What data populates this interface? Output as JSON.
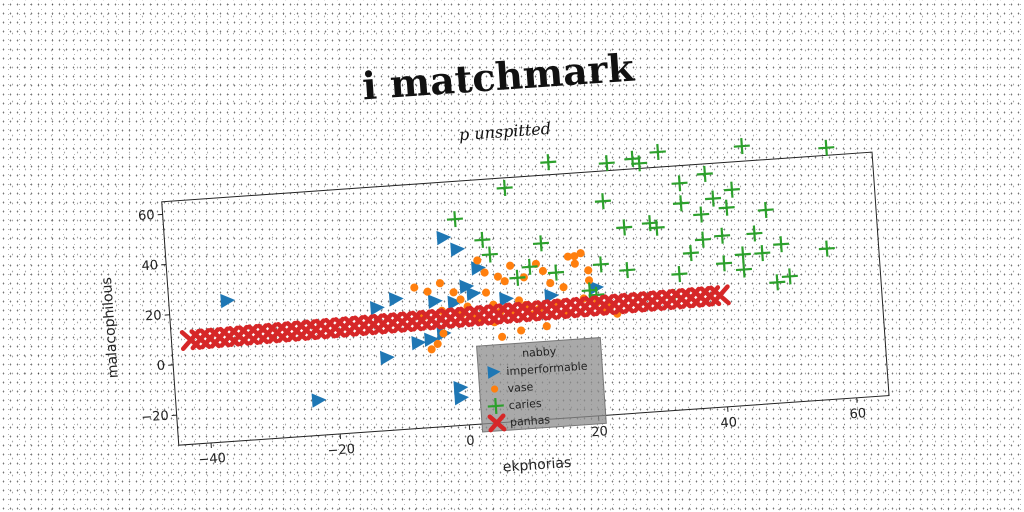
{
  "chart_data": {
    "type": "scatter",
    "title": "i matchmark",
    "subtitle": "p unspitted",
    "xlabel": "ekphorias",
    "ylabel": "malacophilous",
    "xlim": [
      -45,
      65
    ],
    "ylim": [
      -32,
      65
    ],
    "xticks": [
      -40,
      -20,
      0,
      20,
      40,
      60
    ],
    "yticks": [
      -20,
      0,
      20,
      40,
      60
    ],
    "legend_title": "nabby",
    "legend_position": "lower-center",
    "series": [
      {
        "name": "imperformable",
        "marker": "triangle-right",
        "color": "#1f77b4",
        "points": [
          [
            -36,
            24
          ],
          [
            -23,
            -18
          ],
          [
            -13,
            17
          ],
          [
            -12,
            -3
          ],
          [
            -10,
            20
          ],
          [
            -4,
            18
          ],
          [
            -2,
            43
          ],
          [
            0,
            38
          ],
          [
            1,
            23
          ],
          [
            3,
            30
          ],
          [
            7,
            17
          ],
          [
            14,
            17
          ],
          [
            21,
            19
          ],
          [
            -1,
            -17
          ],
          [
            -1,
            -21
          ],
          [
            -3,
            5
          ],
          [
            -5,
            3
          ],
          [
            -1,
            17
          ],
          [
            2,
            20
          ],
          [
            -7,
            2
          ]
        ]
      },
      {
        "name": "vase",
        "color": "#ff7f0e",
        "marker": "circle",
        "points": [
          [
            -7,
            24
          ],
          [
            -5,
            22
          ],
          [
            -3,
            25
          ],
          [
            -3,
            14
          ],
          [
            -1,
            21
          ],
          [
            0,
            18
          ],
          [
            1,
            15
          ],
          [
            2,
            12
          ],
          [
            3,
            33
          ],
          [
            4,
            28
          ],
          [
            4,
            20
          ],
          [
            5,
            15
          ],
          [
            6,
            26
          ],
          [
            6,
            12
          ],
          [
            7,
            24
          ],
          [
            8,
            30
          ],
          [
            9,
            16
          ],
          [
            10,
            14
          ],
          [
            10,
            25
          ],
          [
            11,
            10
          ],
          [
            12,
            30
          ],
          [
            13,
            27
          ],
          [
            14,
            22
          ],
          [
            15,
            14
          ],
          [
            16,
            20
          ],
          [
            17,
            32
          ],
          [
            18,
            32
          ],
          [
            18,
            29
          ],
          [
            19,
            33
          ],
          [
            20,
            22
          ],
          [
            20,
            26
          ],
          [
            21,
            13
          ],
          [
            22,
            10
          ],
          [
            23,
            11
          ],
          [
            2,
            10
          ],
          [
            3,
            9
          ],
          [
            -6,
            12
          ],
          [
            -4,
            1
          ],
          [
            -5,
            -1
          ],
          [
            -3,
            5
          ],
          [
            0,
            12
          ],
          [
            5,
            8
          ],
          [
            8,
            11
          ],
          [
            12,
            12
          ],
          [
            16,
            9
          ],
          [
            19,
            15
          ],
          [
            24,
            8
          ],
          [
            13,
            5
          ],
          [
            9,
            4
          ],
          [
            6,
            2
          ]
        ]
      },
      {
        "name": "caries",
        "color": "#2ca02c",
        "marker": "plus",
        "points": [
          [
            0,
            50
          ],
          [
            4,
            41
          ],
          [
            5,
            35
          ],
          [
            8,
            61
          ],
          [
            15,
            70
          ],
          [
            9,
            25
          ],
          [
            11,
            29
          ],
          [
            13,
            38
          ],
          [
            15,
            26
          ],
          [
            20,
            18
          ],
          [
            21,
            16
          ],
          [
            22,
            28
          ],
          [
            23,
            53
          ],
          [
            24,
            68
          ],
          [
            26,
            42
          ],
          [
            28,
            69
          ],
          [
            29,
            67
          ],
          [
            30,
            43
          ],
          [
            31,
            41
          ],
          [
            32,
            71
          ],
          [
            33,
            13
          ],
          [
            35,
            50
          ],
          [
            36,
            30
          ],
          [
            38,
            35
          ],
          [
            40,
            51
          ],
          [
            41,
            36
          ],
          [
            42,
            47
          ],
          [
            43,
            54
          ],
          [
            44,
            28
          ],
          [
            45,
            71
          ],
          [
            46,
            36
          ],
          [
            48,
            45
          ],
          [
            49,
            16
          ],
          [
            50,
            31
          ],
          [
            51,
            18
          ],
          [
            57,
            28
          ],
          [
            58,
            68
          ],
          [
            35,
            58
          ],
          [
            38,
            45
          ],
          [
            41,
            25
          ],
          [
            44,
            22
          ],
          [
            47,
            28
          ],
          [
            39,
            61
          ],
          [
            34,
            22
          ],
          [
            26,
            25
          ]
        ]
      },
      {
        "name": "panhas",
        "color": "#d62728",
        "marker": "x",
        "x_start": -42,
        "x_end": 40,
        "y_start": 9.4,
        "y_end": 12.4,
        "count": 56
      }
    ]
  }
}
